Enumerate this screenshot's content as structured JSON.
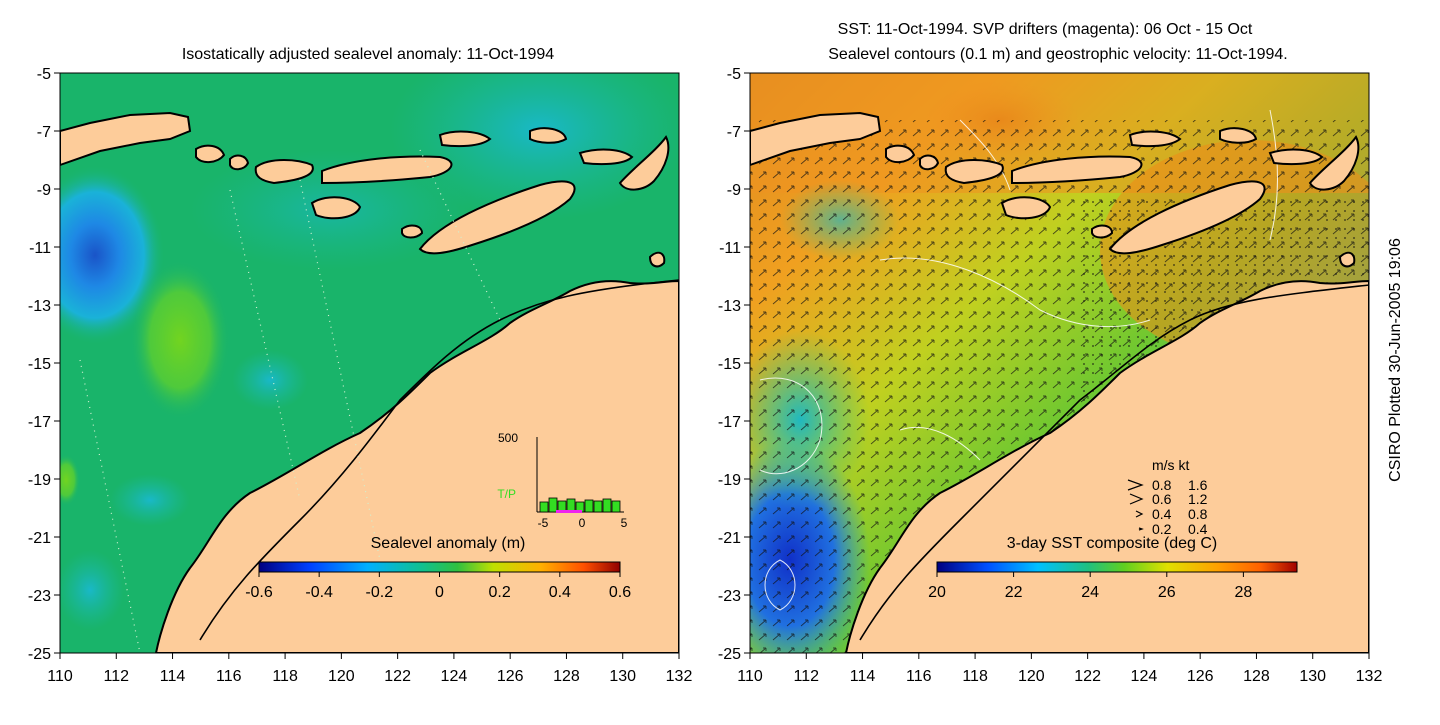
{
  "left_map": {
    "title": "Isostatically adjusted sealevel anomaly: 11-Oct-1994",
    "colorbar_label": "Sealevel anomaly (m)",
    "colorbar_ticks": [
      "-0.6",
      "-0.4",
      "-0.2",
      "0",
      "0.2",
      "0.4",
      "0.6"
    ],
    "colors": {
      "ocean": "#19b46a",
      "land": "#fdcc9a",
      "high_anomaly": "#72d420",
      "low_anomaly": "#1e88e5",
      "deep_low": "#1a54c8",
      "mid_cyan": "#19c0a0"
    },
    "inset": {
      "y_label": "500",
      "series_label": "T/P",
      "x_ticks": [
        "-5",
        "0",
        "5"
      ],
      "bar_color": "#33dd22",
      "marker_color": "#ee22ee"
    }
  },
  "right_map": {
    "title_line1": "SST: 11-Oct-1994. SVP drifters (magenta): 06 Oct - 15 Oct",
    "title_line2": "Sealevel contours (0.1 m) and geostrophic velocity: 11-Oct-1994.",
    "colorbar_label": "3-day SST composite (deg C)",
    "colorbar_ticks": [
      "20",
      "22",
      "24",
      "26",
      "28"
    ],
    "colors": {
      "warm": "#f09020",
      "mid": "#a0d020",
      "cool": "#20c0a0",
      "cold": "#2060e0",
      "land": "#fdcc9a"
    },
    "speed_legend": {
      "header": "m/s  kt",
      "rows": [
        {
          "ms": "0.8",
          "kt": "1.6"
        },
        {
          "ms": "0.6",
          "kt": "1.2"
        },
        {
          "ms": "0.4",
          "kt": "0.8"
        },
        {
          "ms": "0.2",
          "kt": "0.4"
        }
      ]
    }
  },
  "axes": {
    "y_ticks": [
      "-5",
      "-7",
      "-9",
      "-11",
      "-13",
      "-15",
      "-17",
      "-19",
      "-21",
      "-23",
      "-25"
    ],
    "x_ticks": [
      "110",
      "112",
      "114",
      "116",
      "118",
      "120",
      "122",
      "124",
      "126",
      "128",
      "130",
      "132"
    ]
  },
  "credit": "CSIRO Plotted 30-Jun-2005 19:06"
}
